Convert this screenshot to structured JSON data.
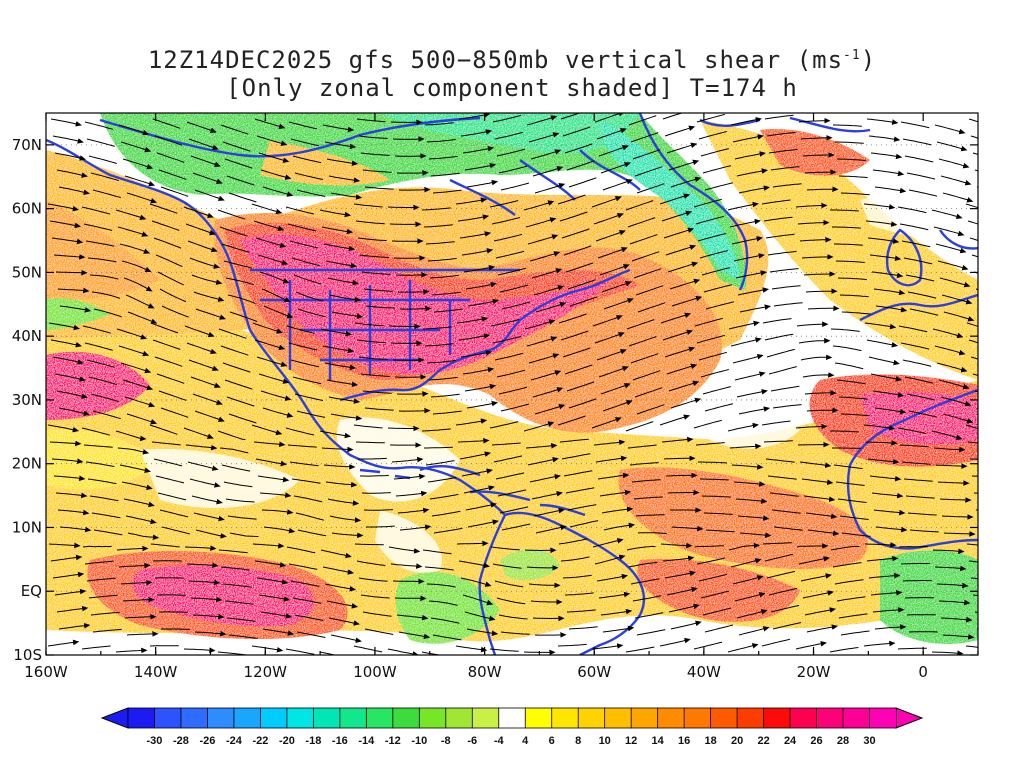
{
  "title": {
    "line1_prefix": "12Z14DEC2025 gfs 500−850mb vertical shear (ms",
    "line1_sup": "-1",
    "line1_suffix": ")",
    "line2": "[Only zonal component shaded] T=174 h"
  },
  "map": {
    "lon_range": [
      -160,
      10
    ],
    "lat_range": [
      -10,
      75
    ],
    "x_ticks": [
      {
        "lon": -160,
        "label": "160W"
      },
      {
        "lon": -140,
        "label": "140W"
      },
      {
        "lon": -120,
        "label": "120W"
      },
      {
        "lon": -100,
        "label": "100W"
      },
      {
        "lon": -80,
        "label": "80W"
      },
      {
        "lon": -60,
        "label": "60W"
      },
      {
        "lon": -40,
        "label": "40W"
      },
      {
        "lon": -20,
        "label": "20W"
      },
      {
        "lon": 0,
        "label": "0"
      }
    ],
    "y_ticks": [
      {
        "lat": 70,
        "label": "70N"
      },
      {
        "lat": 60,
        "label": "60N"
      },
      {
        "lat": 50,
        "label": "50N"
      },
      {
        "lat": 40,
        "label": "40N"
      },
      {
        "lat": 30,
        "label": "30N"
      },
      {
        "lat": 20,
        "label": "20N"
      },
      {
        "lat": 10,
        "label": "10N"
      },
      {
        "lat": 0,
        "label": "EQ"
      },
      {
        "lat": -10,
        "label": "10S"
      }
    ],
    "coastline_color": "#2b3fe0",
    "streamline_color": "#000000"
  },
  "colorbar": {
    "colors": [
      "#1c1cf2",
      "#2d52ff",
      "#2d6cff",
      "#2d8cff",
      "#1aa5ff",
      "#00ccff",
      "#00e6e6",
      "#00e6b4",
      "#14e68c",
      "#28e664",
      "#3cdc3c",
      "#78e628",
      "#a0e632",
      "#c8f046",
      "#ffffff",
      "#ffff00",
      "#ffe600",
      "#ffd200",
      "#ffbe00",
      "#ffa500",
      "#ff8c00",
      "#ff7800",
      "#ff5a00",
      "#ff3c00",
      "#ff0a0a",
      "#ff0050",
      "#ff0078",
      "#ff0096",
      "#ff00b4"
    ],
    "labels": [
      "-30",
      "-28",
      "-26",
      "-24",
      "-22",
      "-20",
      "-18",
      "-16",
      "-14",
      "-12",
      "-10",
      "-8",
      "-6",
      "-4",
      "4",
      "6",
      "8",
      "10",
      "12",
      "14",
      "16",
      "18",
      "20",
      "22",
      "24",
      "26",
      "28",
      "30"
    ]
  }
}
